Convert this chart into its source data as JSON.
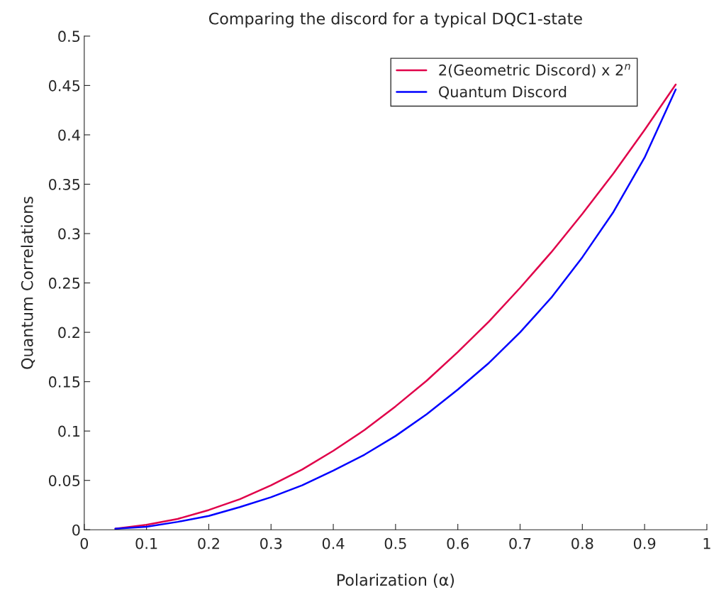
{
  "chart_data": {
    "type": "line",
    "title": "Comparing the discord for a typical DQC1-state",
    "xlabel": "Polarization (α)",
    "ylabel": "Quantum Correlations",
    "x": [
      0.05,
      0.1,
      0.15,
      0.2,
      0.25,
      0.3,
      0.35,
      0.4,
      0.45,
      0.5,
      0.55,
      0.6,
      0.65,
      0.7,
      0.75,
      0.8,
      0.85,
      0.9,
      0.95
    ],
    "series": [
      {
        "name": "2(Geometric Discord) x 2$^{n}$",
        "color": "#e0004a",
        "values": [
          0.001,
          0.005,
          0.011,
          0.02,
          0.031,
          0.045,
          0.061,
          0.08,
          0.101,
          0.125,
          0.151,
          0.18,
          0.211,
          0.245,
          0.281,
          0.32,
          0.361,
          0.405,
          0.451
        ]
      },
      {
        "name": "Quantum Discord",
        "color": "#0000ff",
        "values": [
          0.001,
          0.003,
          0.008,
          0.014,
          0.023,
          0.033,
          0.045,
          0.06,
          0.076,
          0.095,
          0.117,
          0.142,
          0.169,
          0.2,
          0.235,
          0.276,
          0.322,
          0.377,
          0.446
        ]
      }
    ],
    "xlim": [
      0,
      1
    ],
    "xticks": [
      0,
      0.1,
      0.2,
      0.3,
      0.4,
      0.5,
      0.6,
      0.7,
      0.8,
      0.9,
      1
    ],
    "ylim": [
      0,
      0.5
    ],
    "yticks": [
      0,
      0.05,
      0.1,
      0.15,
      0.2,
      0.25,
      0.3,
      0.35,
      0.4,
      0.45,
      0.5
    ],
    "grid": false,
    "legend": "top right",
    "marker": "none",
    "line_style": "solid"
  }
}
